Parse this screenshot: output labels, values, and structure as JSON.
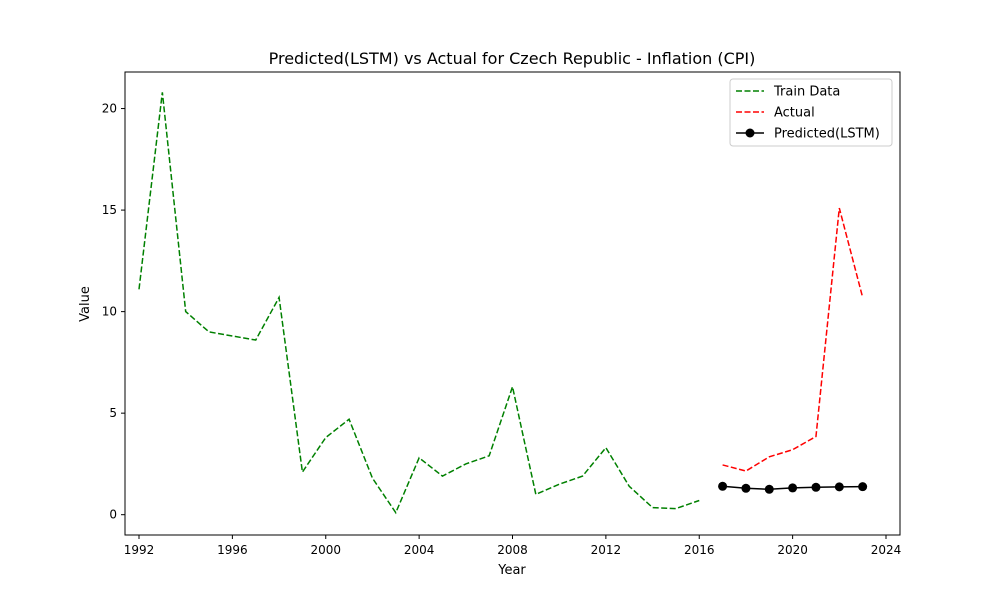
{
  "chart_data": {
    "type": "line",
    "title": "Predicted(LSTM) vs Actual for Czech Republic - Inflation (CPI)",
    "xlabel": "Year",
    "ylabel": "Value",
    "xlim": [
      1991.4,
      2024.6
    ],
    "ylim": [
      -1.0,
      21.8
    ],
    "xticks": [
      1992,
      1996,
      2000,
      2004,
      2008,
      2012,
      2016,
      2020,
      2024
    ],
    "yticks": [
      0,
      5,
      10,
      15,
      20
    ],
    "legend_position": "top-right",
    "grid": false,
    "series": [
      {
        "name": "Train Data",
        "color": "#008000",
        "style": "dashed",
        "marker": "none",
        "x": [
          1992,
          1993,
          1994,
          1995,
          1996,
          1997,
          1998,
          1999,
          2000,
          2001,
          2002,
          2003,
          2004,
          2005,
          2006,
          2007,
          2008,
          2009,
          2010,
          2011,
          2012,
          2013,
          2014,
          2015,
          2016
        ],
        "y": [
          11.1,
          20.8,
          10.0,
          9.0,
          8.8,
          8.6,
          10.7,
          2.1,
          3.8,
          4.7,
          1.8,
          0.1,
          2.8,
          1.9,
          2.5,
          2.9,
          6.3,
          1.0,
          1.5,
          1.9,
          3.3,
          1.4,
          0.35,
          0.3,
          0.7
        ]
      },
      {
        "name": "Actual",
        "color": "#ff0000",
        "style": "dashed",
        "marker": "none",
        "x": [
          2017,
          2018,
          2019,
          2020,
          2021,
          2022,
          2023
        ],
        "y": [
          2.45,
          2.15,
          2.85,
          3.2,
          3.85,
          15.1,
          10.7
        ]
      },
      {
        "name": "Predicted(LSTM)",
        "color": "#000000",
        "style": "solid",
        "marker": "circle",
        "x": [
          2017,
          2018,
          2019,
          2020,
          2021,
          2022,
          2023
        ],
        "y": [
          1.4,
          1.3,
          1.25,
          1.32,
          1.35,
          1.37,
          1.38
        ]
      }
    ]
  }
}
